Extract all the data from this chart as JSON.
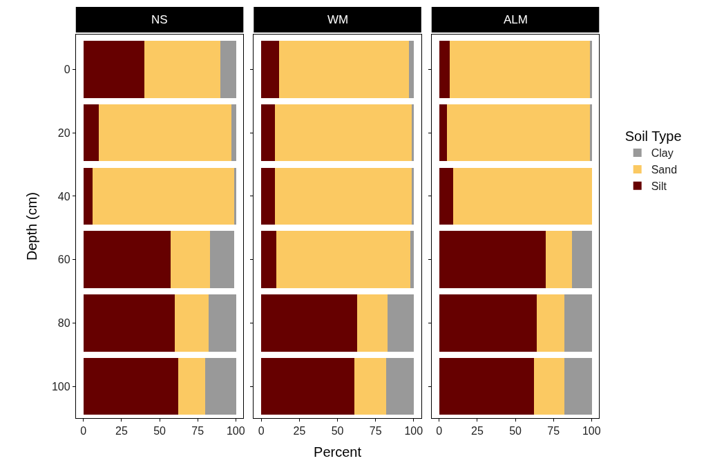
{
  "chart_data": [
    {
      "type": "bar",
      "orientation": "horizontal",
      "stacked": true,
      "title": "NS",
      "ylabel": "Depth (cm)",
      "legend_title": "Soil Type",
      "legend": "right",
      "x": [
        0,
        20,
        40,
        60,
        80,
        100
      ],
      "series": [
        {
          "name": "Silt",
          "color": "#660000",
          "values": [
            40,
            10,
            6,
            57,
            60,
            62
          ]
        },
        {
          "name": "Sand",
          "color": "#fbc962",
          "values": [
            50,
            87,
            93,
            26,
            22,
            18
          ]
        },
        {
          "name": "Clay",
          "color": "#999999",
          "values": [
            10,
            3,
            1,
            16,
            18,
            20
          ]
        }
      ],
      "xlim": [
        -5,
        105
      ],
      "xticks": [
        0,
        25,
        50,
        75,
        100
      ],
      "ylim": [
        110,
        -11
      ],
      "yticks": [
        0,
        20,
        40,
        60,
        80,
        100
      ]
    },
    {
      "type": "bar",
      "orientation": "horizontal",
      "stacked": true,
      "title": "WM",
      "xlabel": "Percent",
      "tick_labels": "x",
      "x": [
        0,
        20,
        40,
        60,
        80,
        100
      ],
      "series": [
        {
          "name": "Silt",
          "color": "#660000",
          "values": [
            12,
            9,
            9,
            10,
            63,
            61
          ]
        },
        {
          "name": "Sand",
          "color": "#fbc962",
          "values": [
            85,
            90,
            90,
            88,
            20,
            21
          ]
        },
        {
          "name": "Clay",
          "color": "#999999",
          "values": [
            3,
            1,
            1,
            2,
            17,
            18
          ]
        }
      ],
      "xlim": [
        -5,
        105
      ],
      "xticks": [
        0,
        25,
        50,
        75,
        100
      ],
      "ylim": [
        110,
        -11
      ],
      "yticks": [
        0,
        20,
        40,
        60,
        80,
        100
      ]
    },
    {
      "type": "bar",
      "orientation": "horizontal",
      "stacked": true,
      "title": "ALM",
      "tick_labels": "x",
      "x": [
        0,
        20,
        40,
        60,
        80,
        100
      ],
      "series": [
        {
          "name": "Silt",
          "color": "#660000",
          "values": [
            7,
            5,
            9,
            70,
            64,
            62
          ]
        },
        {
          "name": "Sand",
          "color": "#fbc962",
          "values": [
            92,
            94,
            91,
            17,
            18,
            20
          ]
        },
        {
          "name": "Clay",
          "color": "#999999",
          "values": [
            1,
            1,
            0,
            13,
            18,
            18
          ]
        }
      ],
      "xlim": [
        -5,
        105
      ],
      "xticks": [
        0,
        25,
        50,
        75,
        100
      ],
      "ylim": [
        110,
        -11
      ],
      "yticks": [
        0,
        20,
        40,
        60,
        80,
        100
      ]
    }
  ]
}
